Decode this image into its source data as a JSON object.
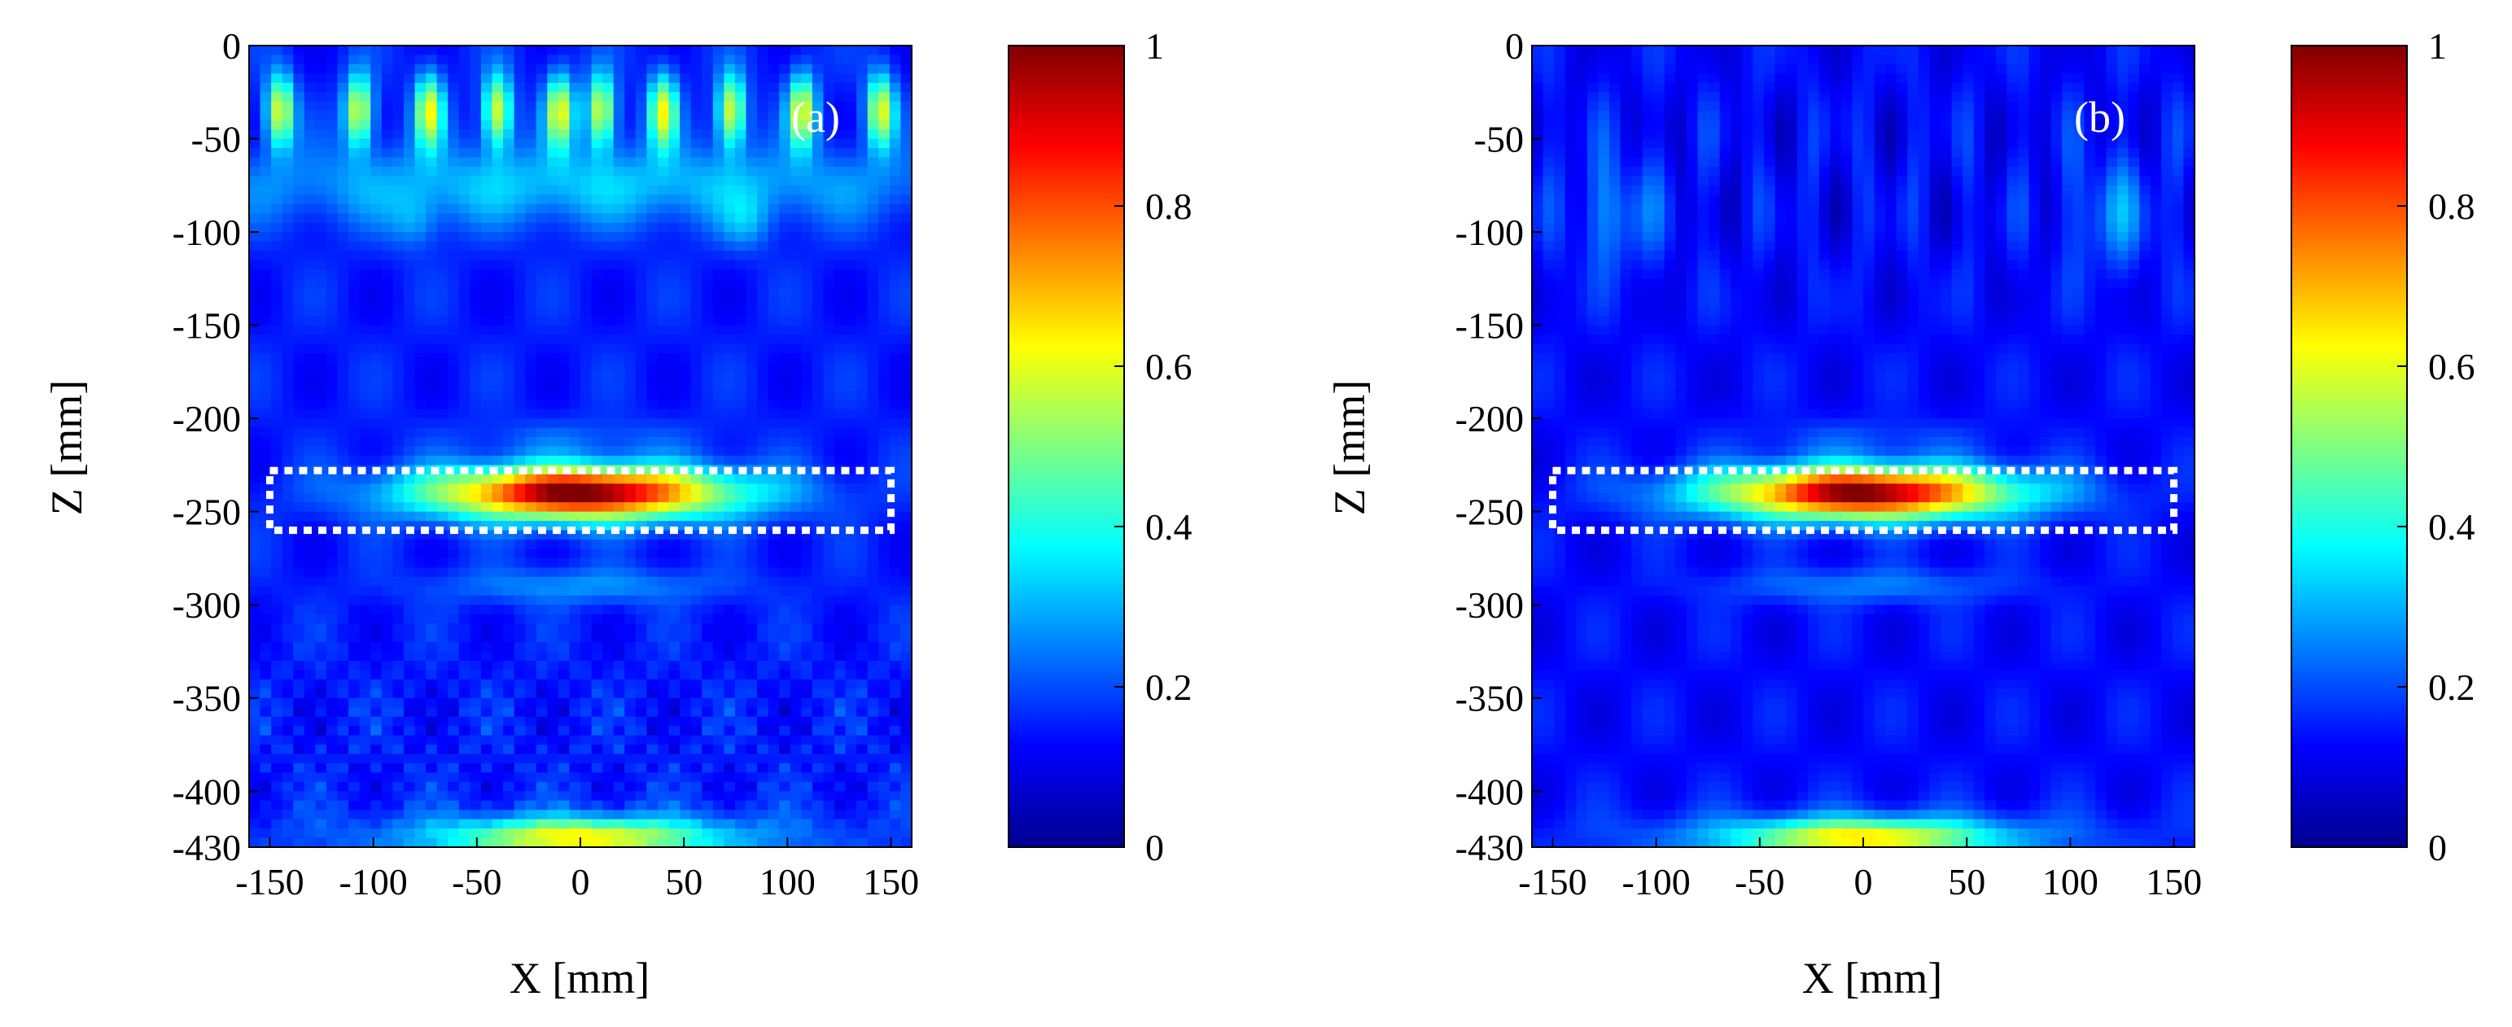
{
  "chart_data": [
    {
      "type": "heatmap",
      "panel_label": "(a)",
      "xlabel": "X [mm]",
      "ylabel": "Z [mm]",
      "xlim": [
        -160,
        160
      ],
      "ylim": [
        -430,
        0
      ],
      "x_ticks": [
        -150,
        -100,
        -50,
        0,
        50,
        100,
        150
      ],
      "x_tick_labels": [
        "-150",
        "-100",
        "-50",
        "0",
        "50",
        "100",
        "150"
      ],
      "y_ticks": [
        0,
        -50,
        -100,
        -150,
        -200,
        -250,
        -300,
        -350,
        -400,
        -430
      ],
      "y_tick_labels": [
        "0",
        "-50",
        "-100",
        "-150",
        "-200",
        "-250",
        "-300",
        "-350",
        "-400",
        "-430"
      ],
      "colorbar": {
        "min": 0,
        "max": 1,
        "ticks": [
          0,
          0.2,
          0.4,
          0.6,
          0.8,
          1
        ],
        "tick_labels": [
          "0",
          "0.2",
          "0.4",
          "0.6",
          "0.8",
          "1"
        ]
      },
      "target_region": {
        "x_range": [
          -150,
          150
        ],
        "z_range": [
          -260,
          -228
        ]
      },
      "features": {
        "main_peak": {
          "x": 0,
          "z": -240,
          "value": 1.0
        },
        "surface_peaks": {
          "x": [
            -145,
            -107,
            -73,
            -40,
            -10,
            10,
            40,
            73,
            107,
            145
          ],
          "z": -35,
          "value": 0.72
        },
        "bottom_band": {
          "z": -425,
          "value": 0.5
        }
      }
    },
    {
      "type": "heatmap",
      "panel_label": "(b)",
      "xlabel": "X [mm]",
      "ylabel": "Z [mm]",
      "xlim": [
        -160,
        160
      ],
      "ylim": [
        -430,
        0
      ],
      "x_ticks": [
        -150,
        -100,
        -50,
        0,
        50,
        100,
        150
      ],
      "x_tick_labels": [
        "-150",
        "-100",
        "-50",
        "0",
        "50",
        "100",
        "150"
      ],
      "y_ticks": [
        0,
        -50,
        -100,
        -150,
        -200,
        -250,
        -300,
        -350,
        -400,
        -430
      ],
      "y_tick_labels": [
        "0",
        "-50",
        "-100",
        "-150",
        "-200",
        "-250",
        "-300",
        "-350",
        "-400",
        "-430"
      ],
      "colorbar": {
        "min": 0,
        "max": 1,
        "ticks": [
          0,
          0.2,
          0.4,
          0.6,
          0.8,
          1
        ],
        "tick_labels": [
          "0",
          "0.2",
          "0.4",
          "0.6",
          "0.8",
          "1"
        ]
      },
      "target_region": {
        "x_range": [
          -150,
          150
        ],
        "z_range": [
          -260,
          -228
        ]
      },
      "features": {
        "main_peak": {
          "x": 0,
          "z": -240,
          "value": 1.0
        },
        "surface_peaks": null,
        "bottom_band": {
          "z": -425,
          "value": 0.55
        }
      }
    }
  ],
  "colors": {
    "target_box": "#ffffff",
    "colormap": [
      "#00008f",
      "#0000ff",
      "#0080ff",
      "#00ffff",
      "#80ff80",
      "#ffff00",
      "#ff8000",
      "#ff0000",
      "#800000"
    ]
  }
}
